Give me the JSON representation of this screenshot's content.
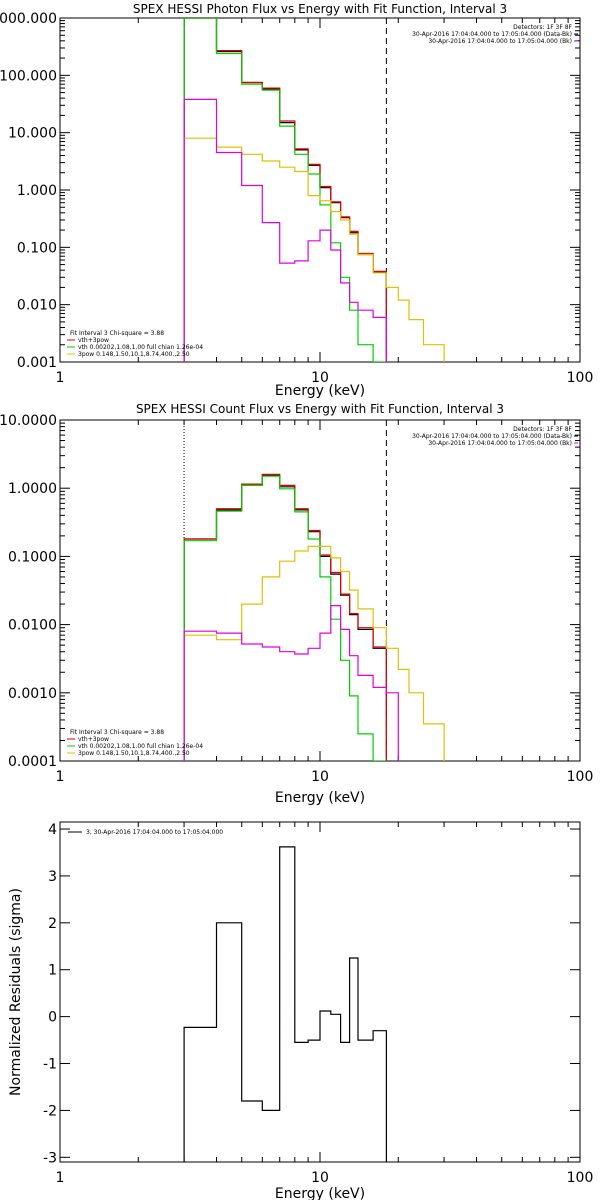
{
  "chart_data": [
    {
      "type": "line",
      "title": "SPEX HESSI Photon Flux vs Energy with Fit Function, Interval 3",
      "xlabel": "Energy (keV)",
      "ylabel": "",
      "x_scale": "log",
      "y_scale": "log",
      "xlim": [
        1,
        100
      ],
      "ylim": [
        0.001,
        1000
      ],
      "x_ticks": [
        1,
        10,
        100
      ],
      "x_tick_labels": [
        "1",
        "10",
        "100"
      ],
      "y_ticks": [
        0.001,
        0.01,
        0.1,
        1,
        10,
        100,
        1000
      ],
      "y_tick_labels": [
        "0.001",
        "0.010",
        "0.100",
        "1.000",
        "10.000",
        "100.000",
        "1000.000"
      ],
      "legend_top": [
        "Detectors: 1F 3F 8F",
        "30-Apr-2016 17:04:04.000 to 17:05:04.000 (Data-Bk)",
        "30-Apr-2016 17:04:04.000 to 17:05:04.000 (Bk)"
      ],
      "legend_bottom": [
        "Fit Interval 3   Chi-square = 3.88",
        "vth+3pow",
        "vth 0.00202,1.08,1.00   full chian 1.26e-04",
        "3pow 0.148,1.50,10.1,8.74,400.,2.50"
      ],
      "vlines": [
        {
          "x": 3.0,
          "style": "solid",
          "color": "#00c000"
        },
        {
          "x": 18.0,
          "style": "dashed",
          "color": "#000000"
        }
      ],
      "edges": [
        3.0,
        4.0,
        5.0,
        6.0,
        7.0,
        8.0,
        9.0,
        10.0,
        11.0,
        12.0,
        13.0,
        14.0,
        16.0,
        18.0,
        20.0,
        22.0,
        25.0,
        30.0
      ],
      "series": [
        {
          "name": "",
          "color": "#000000",
          "values": [
            1000,
            260,
            75,
            58,
            15,
            5,
            2.7,
            1.1,
            0.6,
            0.33,
            0.18,
            0.075,
            0.037
          ]
        },
        {
          "name": "vth+3pow",
          "color": "#e00000",
          "values": [
            1000,
            270,
            75,
            60,
            16,
            5.2,
            2.8,
            1.15,
            0.62,
            0.34,
            0.19,
            0.078,
            0.038
          ]
        },
        {
          "name": "vth 0.00202,1.08,1.00   full chian 1.26e-04",
          "color": "#00d000",
          "values": [
            1000,
            240,
            70,
            55,
            13,
            4.2,
            1.9,
            0.55,
            0.12,
            0.03,
            0.008,
            0.002,
            0.001
          ]
        },
        {
          "name": "3pow 0.148,1.50,10.1,8.74,400.,2.50",
          "color": "#e0c000",
          "values": [
            8,
            5.6,
            4.2,
            3.2,
            2.5,
            2.1,
            0.8,
            0.65,
            0.42,
            0.3,
            0.17,
            0.075,
            0.036,
            0.02,
            0.012,
            0.0055,
            0.002
          ]
        },
        {
          "name": "",
          "color": "#e000e0",
          "values": [
            38,
            4.5,
            1.2,
            0.27,
            0.053,
            0.058,
            0.13,
            0.2,
            0.09,
            0.024,
            0.011,
            0.008,
            0.006
          ]
        }
      ]
    },
    {
      "type": "line",
      "title": "SPEX HESSI Count Flux vs Energy with Fit Function, Interval 3",
      "xlabel": "Energy (keV)",
      "ylabel": "",
      "x_scale": "log",
      "y_scale": "log",
      "xlim": [
        1,
        100
      ],
      "ylim": [
        0.0001,
        10
      ],
      "x_ticks": [
        1,
        10,
        100
      ],
      "x_tick_labels": [
        "1",
        "10",
        "100"
      ],
      "y_ticks": [
        0.0001,
        0.001,
        0.01,
        0.1,
        1,
        10
      ],
      "y_tick_labels": [
        "0.0001",
        "0.0010",
        "0.0100",
        "0.1000",
        "1.0000",
        "10.0000"
      ],
      "legend_top": [
        "Detectors: 1F 3F 8F",
        "30-Apr-2016 17:04:04.000 to 17:05:04.000 (Data-Bk)",
        "30-Apr-2016 17:04:04.000 to 17:05:04.000 (Bk)"
      ],
      "legend_bottom": [
        "Fit Interval 3   Chi-square = 3.88",
        "vth+3pow",
        "vth 0.00202,1.08,1.00   full chian 1.26e-04",
        "3pow 0.148,1.50,10.1,8.74,400.,2.50"
      ],
      "vlines": [
        {
          "x": 3.0,
          "style": "dotted",
          "color": "#000000"
        },
        {
          "x": 18.0,
          "style": "dashed",
          "color": "#000000"
        }
      ],
      "edges": [
        3.0,
        4.0,
        5.0,
        6.0,
        7.0,
        8.0,
        9.0,
        10.0,
        11.0,
        12.0,
        13.0,
        14.0,
        16.0,
        18.0,
        20.0,
        22.0,
        25.0,
        30.0
      ],
      "series": [
        {
          "name": "",
          "color": "#000000",
          "values": [
            0.18,
            0.48,
            1.1,
            1.55,
            1.05,
            0.48,
            0.23,
            0.1,
            0.055,
            0.027,
            0.014,
            0.0085,
            0.0045
          ]
        },
        {
          "name": "vth+3pow",
          "color": "#e00000",
          "values": [
            0.18,
            0.5,
            1.15,
            1.6,
            1.1,
            0.5,
            0.24,
            0.105,
            0.058,
            0.028,
            0.0145,
            0.009,
            0.0047
          ]
        },
        {
          "name": "vth 0.00202,1.08,1.00   full chian 1.26e-04",
          "color": "#00d000",
          "values": [
            0.17,
            0.46,
            1.1,
            1.5,
            0.98,
            0.45,
            0.18,
            0.05,
            0.012,
            0.003,
            0.0009,
            0.00025,
            0.0001
          ]
        },
        {
          "name": "3pow 0.148,1.50,10.1,8.74,400.,2.50",
          "color": "#e0c000",
          "values": [
            0.007,
            0.006,
            0.02,
            0.05,
            0.085,
            0.12,
            0.14,
            0.14,
            0.095,
            0.06,
            0.032,
            0.017,
            0.009,
            0.0045,
            0.0022,
            0.001,
            0.00035
          ]
        },
        {
          "name": "",
          "color": "#e000e0",
          "values": [
            0.008,
            0.0075,
            0.0052,
            0.0047,
            0.004,
            0.0037,
            0.0045,
            0.0075,
            0.019,
            0.0085,
            0.0035,
            0.0018,
            0.0012,
            0.001
          ]
        }
      ]
    },
    {
      "type": "line",
      "title": "",
      "xlabel": "Energy (keV)",
      "ylabel": "Normalized Residuals (sigma)",
      "x_scale": "log",
      "y_scale": "linear",
      "xlim": [
        1,
        100
      ],
      "ylim": [
        -3.1,
        4.15
      ],
      "x_ticks": [
        1,
        10,
        100
      ],
      "x_tick_labels": [
        "1",
        "10",
        "100"
      ],
      "y_ticks": [
        -3,
        -2,
        -1,
        0,
        1,
        2,
        3,
        4
      ],
      "y_tick_labels": [
        "-3",
        "-2",
        "-1",
        "0",
        "1",
        "2",
        "3",
        "4"
      ],
      "legend_top": [
        "3, 30-Apr-2016 17:04:04.000 to 17:05:04.000"
      ],
      "legend_bottom": [],
      "vlines": [],
      "edges": [
        3.0,
        4.0,
        5.0,
        6.0,
        7.0,
        8.0,
        9.0,
        10.0,
        11.0,
        12.0,
        13.0,
        14.0,
        16.0,
        18.0
      ],
      "series": [
        {
          "name": "3, 30-Apr-2016 17:04:04.000 to 17:05:04.000",
          "color": "#000000",
          "values": [
            -0.23,
            2.0,
            -1.8,
            -2.0,
            3.62,
            -0.55,
            -0.5,
            0.12,
            0.05,
            -0.55,
            1.25,
            -0.5,
            -0.3
          ]
        }
      ]
    }
  ]
}
